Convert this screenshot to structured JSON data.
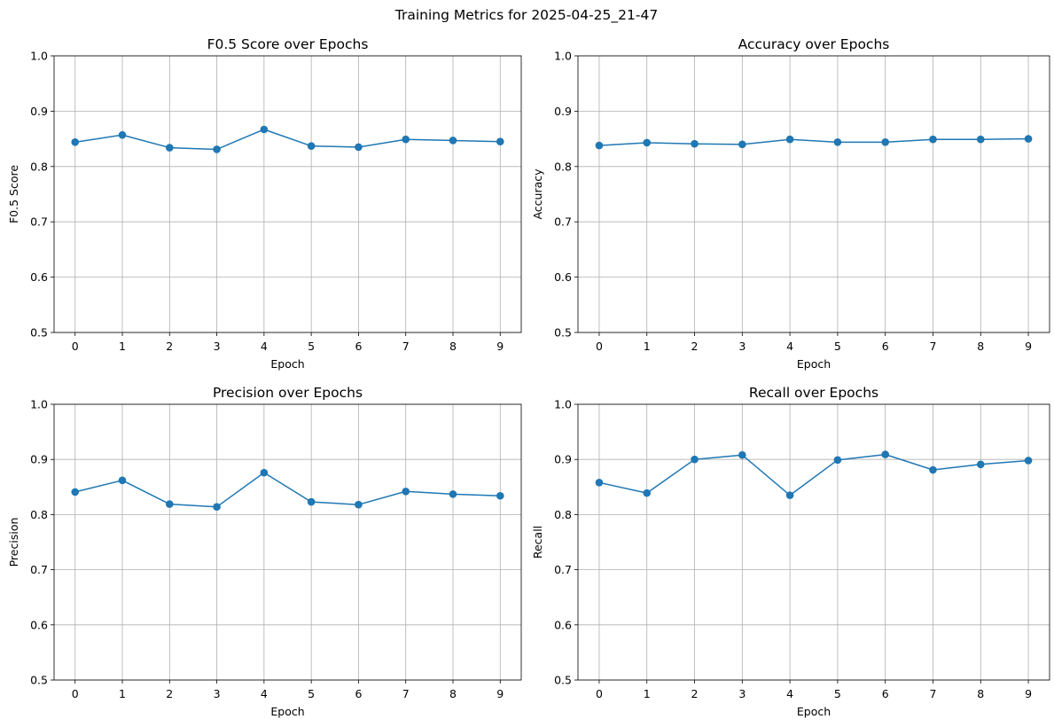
{
  "figure_title": "Training Metrics for 2025-04-25_21-47",
  "chart_data": [
    {
      "type": "line",
      "title": "F0.5 Score over Epochs",
      "xlabel": "Epoch",
      "ylabel": "F0.5 Score",
      "x": [
        0,
        1,
        2,
        3,
        4,
        5,
        6,
        7,
        8,
        9
      ],
      "values": [
        0.844,
        0.857,
        0.834,
        0.831,
        0.867,
        0.837,
        0.835,
        0.849,
        0.847,
        0.845
      ],
      "ylim": [
        0.5,
        1.0
      ],
      "yticks": [
        "0.5",
        "0.6",
        "0.7",
        "0.8",
        "0.9",
        "1.0"
      ],
      "xticks": [
        "0",
        "1",
        "2",
        "3",
        "4",
        "5",
        "6",
        "7",
        "8",
        "9"
      ],
      "grid": true,
      "marker": "circle",
      "color": "#1f77b4"
    },
    {
      "type": "line",
      "title": "Accuracy over Epochs",
      "xlabel": "Epoch",
      "ylabel": "Accuracy",
      "x": [
        0,
        1,
        2,
        3,
        4,
        5,
        6,
        7,
        8,
        9
      ],
      "values": [
        0.838,
        0.843,
        0.841,
        0.84,
        0.849,
        0.844,
        0.844,
        0.849,
        0.849,
        0.85
      ],
      "ylim": [
        0.5,
        1.0
      ],
      "yticks": [
        "0.5",
        "0.6",
        "0.7",
        "0.8",
        "0.9",
        "1.0"
      ],
      "xticks": [
        "0",
        "1",
        "2",
        "3",
        "4",
        "5",
        "6",
        "7",
        "8",
        "9"
      ],
      "grid": true,
      "marker": "circle",
      "color": "#1f77b4"
    },
    {
      "type": "line",
      "title": "Precision over Epochs",
      "xlabel": "Epoch",
      "ylabel": "Precision",
      "x": [
        0,
        1,
        2,
        3,
        4,
        5,
        6,
        7,
        8,
        9
      ],
      "values": [
        0.841,
        0.862,
        0.819,
        0.814,
        0.876,
        0.823,
        0.818,
        0.842,
        0.837,
        0.834
      ],
      "ylim": [
        0.5,
        1.0
      ],
      "yticks": [
        "0.5",
        "0.6",
        "0.7",
        "0.8",
        "0.9",
        "1.0"
      ],
      "xticks": [
        "0",
        "1",
        "2",
        "3",
        "4",
        "5",
        "6",
        "7",
        "8",
        "9"
      ],
      "grid": true,
      "marker": "circle",
      "color": "#1f77b4"
    },
    {
      "type": "line",
      "title": "Recall over Epochs",
      "xlabel": "Epoch",
      "ylabel": "Recall",
      "x": [
        0,
        1,
        2,
        3,
        4,
        5,
        6,
        7,
        8,
        9
      ],
      "values": [
        0.858,
        0.839,
        0.9,
        0.908,
        0.835,
        0.899,
        0.909,
        0.881,
        0.891,
        0.898
      ],
      "ylim": [
        0.5,
        1.0
      ],
      "yticks": [
        "0.5",
        "0.6",
        "0.7",
        "0.8",
        "0.9",
        "1.0"
      ],
      "xticks": [
        "0",
        "1",
        "2",
        "3",
        "4",
        "5",
        "6",
        "7",
        "8",
        "9"
      ],
      "grid": true,
      "marker": "circle",
      "color": "#1f77b4"
    }
  ]
}
